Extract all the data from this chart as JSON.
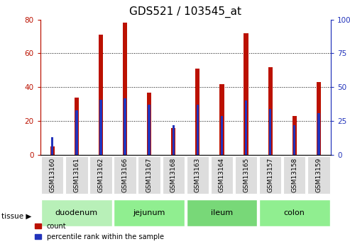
{
  "title": "GDS521 / 103545_at",
  "samples": [
    "GSM13160",
    "GSM13161",
    "GSM13162",
    "GSM13166",
    "GSM13167",
    "GSM13168",
    "GSM13163",
    "GSM13164",
    "GSM13165",
    "GSM13157",
    "GSM13158",
    "GSM13159"
  ],
  "count": [
    5,
    34,
    71,
    78,
    37,
    16,
    51,
    42,
    72,
    52,
    23,
    43
  ],
  "percentile": [
    13,
    33,
    41,
    42,
    37,
    22,
    37,
    29,
    40,
    34,
    22,
    31
  ],
  "tissues": [
    {
      "label": "duodenum",
      "indices": [
        0,
        1,
        2
      ],
      "color": "#b8f0b8"
    },
    {
      "label": "jejunum",
      "indices": [
        3,
        4,
        5
      ],
      "color": "#90ee90"
    },
    {
      "label": "ileum",
      "indices": [
        6,
        7,
        8
      ],
      "color": "#78d878"
    },
    {
      "label": "colon",
      "indices": [
        9,
        10,
        11
      ],
      "color": "#90ee90"
    }
  ],
  "bar_color_red": "#bb1100",
  "bar_color_blue": "#2233bb",
  "red_bar_width": 0.18,
  "blue_bar_width": 0.1,
  "ylim_left": [
    0,
    80
  ],
  "ylim_right": [
    0,
    100
  ],
  "yticks_left": [
    0,
    20,
    40,
    60,
    80
  ],
  "yticks_right": [
    0,
    25,
    50,
    75,
    100
  ],
  "legend_count": "count",
  "legend_percentile": "percentile rank within the sample",
  "title_fontsize": 11,
  "tick_fontsize": 7.5,
  "sample_fontsize": 6.5,
  "tissue_fontsize": 8,
  "legend_fontsize": 7
}
